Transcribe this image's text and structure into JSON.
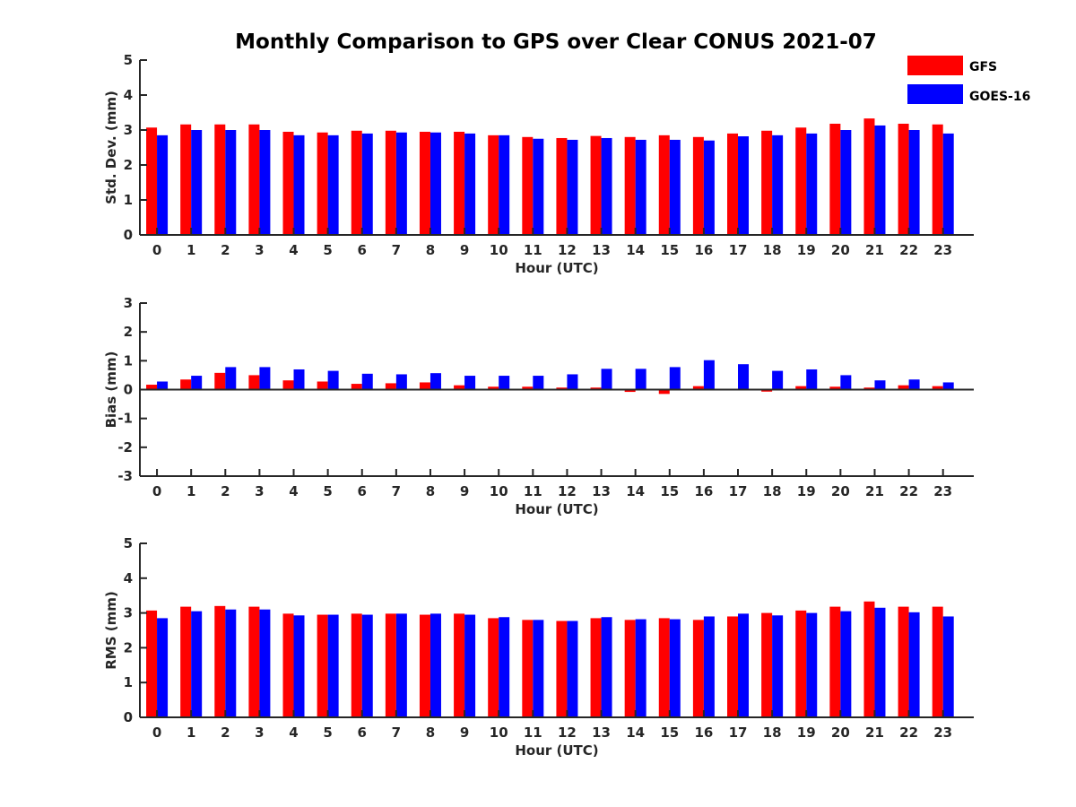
{
  "title": "Monthly Comparison to GPS over Clear CONUS 2021-07",
  "colors": {
    "GFS": "#ff0000",
    "GOES-16": "#0000ff",
    "axis": "#262626"
  },
  "legend": {
    "position": "top-right",
    "entries": [
      "GFS",
      "GOES-16"
    ]
  },
  "chart_data": [
    {
      "type": "bar",
      "title": "Monthly Comparison to GPS over Clear CONUS 2021-07",
      "xlabel": "Hour (UTC)",
      "ylabel": "Std. Dev. (mm)",
      "ylim": [
        0,
        5
      ],
      "yticks": [
        0,
        1,
        2,
        3,
        4,
        5
      ],
      "categories": [
        "0",
        "1",
        "2",
        "3",
        "4",
        "5",
        "6",
        "7",
        "8",
        "9",
        "10",
        "11",
        "12",
        "13",
        "14",
        "15",
        "16",
        "17",
        "18",
        "19",
        "20",
        "21",
        "22",
        "23"
      ],
      "series": [
        {
          "name": "GFS",
          "values": [
            3.07,
            3.16,
            3.16,
            3.16,
            2.95,
            2.93,
            2.98,
            2.98,
            2.95,
            2.95,
            2.85,
            2.8,
            2.77,
            2.83,
            2.8,
            2.85,
            2.8,
            2.9,
            2.98,
            3.07,
            3.18,
            3.33,
            3.18,
            3.16
          ]
        },
        {
          "name": "GOES-16",
          "values": [
            2.85,
            3.0,
            3.0,
            3.0,
            2.85,
            2.85,
            2.9,
            2.93,
            2.93,
            2.9,
            2.85,
            2.75,
            2.72,
            2.77,
            2.72,
            2.72,
            2.7,
            2.82,
            2.85,
            2.9,
            3.0,
            3.13,
            3.0,
            2.9
          ]
        }
      ]
    },
    {
      "type": "bar",
      "title": "",
      "xlabel": "Hour (UTC)",
      "ylabel": "Bias (mm)",
      "ylim": [
        -3,
        3
      ],
      "yticks": [
        -3,
        -2,
        -1,
        0,
        1,
        2,
        3
      ],
      "zero_line": true,
      "categories": [
        "0",
        "1",
        "2",
        "3",
        "4",
        "5",
        "6",
        "7",
        "8",
        "9",
        "10",
        "11",
        "12",
        "13",
        "14",
        "15",
        "16",
        "17",
        "18",
        "19",
        "20",
        "21",
        "22",
        "23"
      ],
      "series": [
        {
          "name": "GFS",
          "values": [
            0.17,
            0.35,
            0.58,
            0.5,
            0.32,
            0.28,
            0.2,
            0.22,
            0.25,
            0.15,
            0.1,
            0.1,
            0.07,
            0.07,
            -0.08,
            -0.15,
            0.12,
            0.0,
            -0.07,
            0.12,
            0.1,
            0.07,
            0.15,
            0.12
          ]
        },
        {
          "name": "GOES-16",
          "values": [
            0.28,
            0.48,
            0.78,
            0.78,
            0.7,
            0.65,
            0.55,
            0.53,
            0.57,
            0.48,
            0.48,
            0.48,
            0.53,
            0.72,
            0.72,
            0.78,
            1.02,
            0.88,
            0.65,
            0.7,
            0.5,
            0.32,
            0.35,
            0.25
          ]
        }
      ]
    },
    {
      "type": "bar",
      "title": "",
      "xlabel": "Hour (UTC)",
      "ylabel": "RMS (mm)",
      "ylim": [
        0,
        5
      ],
      "yticks": [
        0,
        1,
        2,
        3,
        4,
        5
      ],
      "categories": [
        "0",
        "1",
        "2",
        "3",
        "4",
        "5",
        "6",
        "7",
        "8",
        "9",
        "10",
        "11",
        "12",
        "13",
        "14",
        "15",
        "16",
        "17",
        "18",
        "19",
        "20",
        "21",
        "22",
        "23"
      ],
      "series": [
        {
          "name": "GFS",
          "values": [
            3.07,
            3.18,
            3.2,
            3.18,
            2.98,
            2.95,
            2.98,
            2.98,
            2.95,
            2.98,
            2.85,
            2.8,
            2.77,
            2.85,
            2.8,
            2.85,
            2.8,
            2.9,
            3.0,
            3.07,
            3.18,
            3.33,
            3.18,
            3.18
          ]
        },
        {
          "name": "GOES-16",
          "values": [
            2.85,
            3.05,
            3.1,
            3.1,
            2.93,
            2.95,
            2.95,
            2.98,
            2.98,
            2.95,
            2.88,
            2.8,
            2.77,
            2.88,
            2.82,
            2.82,
            2.9,
            2.98,
            2.93,
            3.0,
            3.05,
            3.15,
            3.02,
            2.9
          ]
        }
      ]
    }
  ]
}
